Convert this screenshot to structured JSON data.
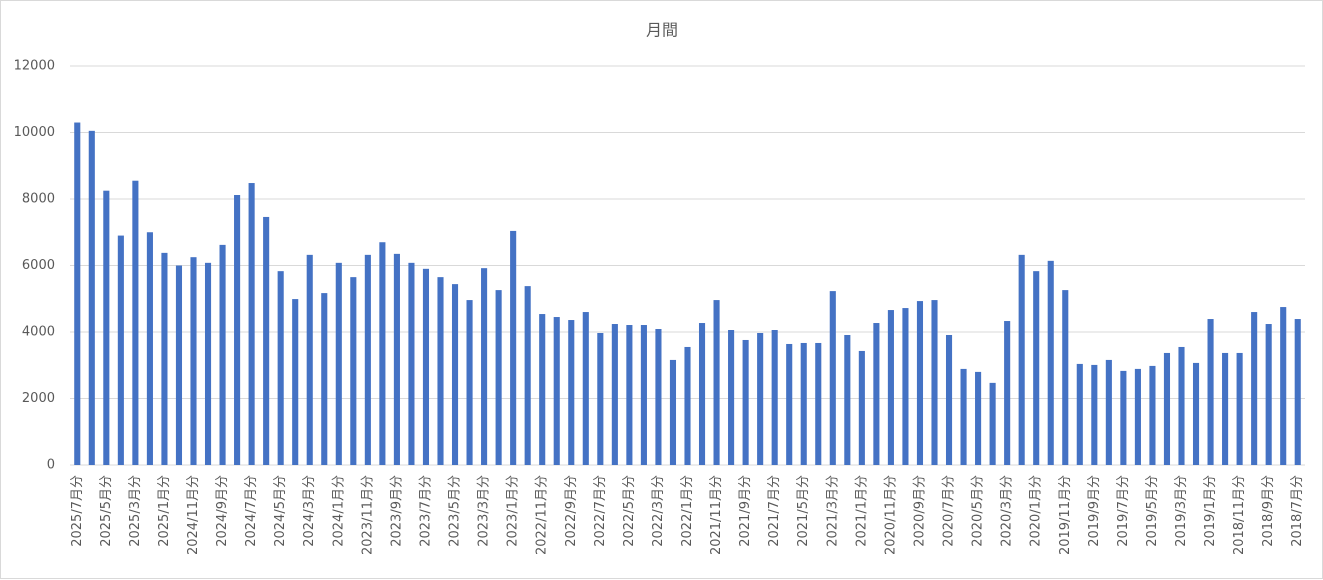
{
  "chart_data": {
    "type": "bar",
    "title": "月間",
    "categories": [
      "2025/7月分",
      null,
      "2025/5月分",
      null,
      "2025/3月分",
      null,
      "2025/1月分",
      null,
      "2024/11月分",
      null,
      "2024/9月分",
      null,
      "2024/7月分",
      null,
      "2024/5月分",
      null,
      "2024/3月分",
      null,
      "2024/1月分",
      null,
      "2023/11月分",
      null,
      "2023/9月分",
      null,
      "2023/7月分",
      null,
      "2023/5月分",
      null,
      "2023/3月分",
      null,
      "2023/1月分",
      null,
      "2022/11月分",
      null,
      "2022/9月分",
      null,
      "2022/7月分",
      null,
      "2022/5月分",
      null,
      "2022/3月分",
      null,
      "2022/1月分",
      null,
      "2021/11月分",
      null,
      "2021/9月分",
      null,
      "2021/7月分",
      null,
      "2021/5月分",
      null,
      "2021/3月分",
      null,
      "2021/1月分",
      null,
      "2020/11月分",
      null,
      "2020/9月分",
      null,
      "2020/7月分",
      null,
      "2020/5月分",
      null,
      "2020/3月分",
      null,
      "2020/1月分",
      null,
      "2019/11月分",
      null,
      "2019/9月分",
      null,
      "2019/7月分",
      null,
      "2019/5月分",
      null,
      "2019/3月分",
      null,
      "2019/1月分",
      null,
      "2018/11月分",
      null,
      "2018/9月分",
      null,
      "2018/7月分"
    ],
    "values": [
      10300,
      10050,
      8250,
      6900,
      8550,
      7000,
      6380,
      6000,
      6250,
      6080,
      6620,
      8120,
      8480,
      7460,
      5830,
      4990,
      6320,
      5170,
      6080,
      5650,
      6320,
      6700,
      6350,
      6080,
      5900,
      5650,
      5440,
      4960,
      5920,
      5260,
      7040,
      5380,
      4540,
      4450,
      4360,
      4600,
      3970,
      4240,
      4210,
      4210,
      4090,
      3160,
      3550,
      4270,
      4960,
      4060,
      3760,
      3970,
      4060,
      3640,
      3670,
      3670,
      5230,
      3910,
      3430,
      4270,
      4660,
      4720,
      4930,
      4960,
      3910,
      2890,
      2800,
      2470,
      4330,
      6320,
      5830,
      6140,
      5260,
      3040,
      3010,
      3160,
      2830,
      2890,
      2980,
      3370,
      3550,
      3070,
      4390,
      3370,
      3370,
      4600,
      4240,
      4750,
      4390
    ],
    "color": "#4472c4",
    "ylim": [
      0,
      12000
    ],
    "yticks": [
      0,
      2000,
      4000,
      6000,
      8000,
      10000,
      12000
    ],
    "grid": true
  }
}
